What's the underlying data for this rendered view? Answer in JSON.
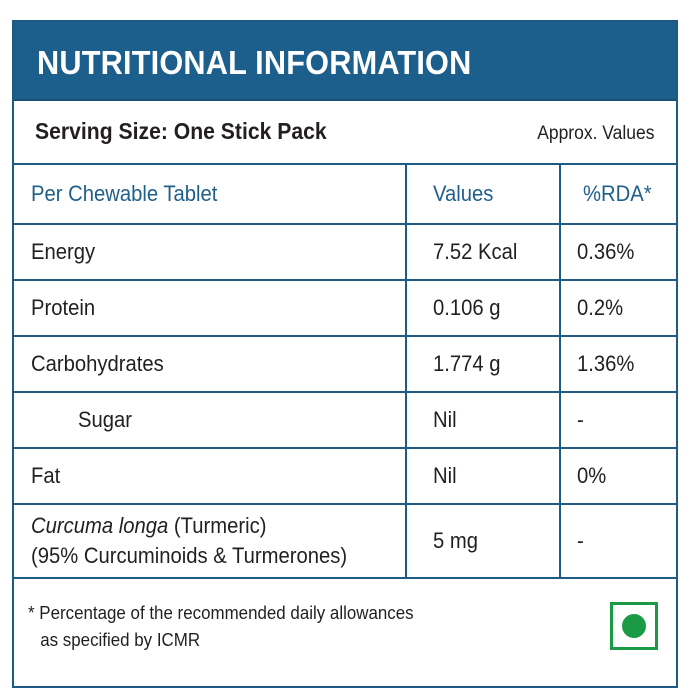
{
  "header": {
    "title": "NUTRITIONAL INFORMATION"
  },
  "serving": {
    "size_label": "Serving Size: One Stick Pack",
    "note": "Approx. Values"
  },
  "table": {
    "columns": [
      "Per Chewable Tablet",
      "Values",
      "%RDA*"
    ],
    "rows": [
      {
        "nutrient": "Energy",
        "value": "7.52 Kcal",
        "rda": "0.36%"
      },
      {
        "nutrient": "Protein",
        "value": "0.106 g",
        "rda": "0.2%"
      },
      {
        "nutrient": "Carbohydrates",
        "value": "1.774 g",
        "rda": "1.36%"
      },
      {
        "nutrient": "Sugar",
        "value": "Nil",
        "rda": "-"
      },
      {
        "nutrient": "Fat",
        "value": "Nil",
        "rda": "0%"
      },
      {
        "nutrient_italic": "Curcuma longa",
        "nutrient_rest": " (Turmeric)",
        "nutrient_line2": "(95% Curcuminoids & Turmerones)",
        "value": "5 mg",
        "rda": "-"
      }
    ]
  },
  "footnote": {
    "line1": "* Percentage of the recommended daily allowances",
    "line2": "as specified by ICMR"
  },
  "veg_mark": {
    "icon": "veg-symbol-icon",
    "color": "#1a9a45"
  },
  "colors": {
    "header_bg": "#1c5f8c",
    "border": "#1b5b86",
    "column_header_text": "#1f5f8b"
  }
}
